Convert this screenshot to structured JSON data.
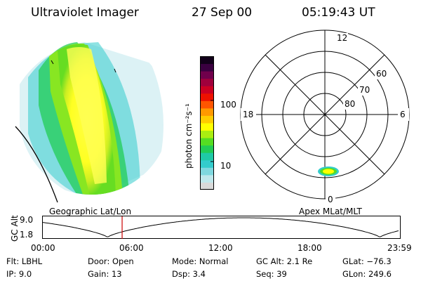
{
  "header": {
    "instrument": "Ultraviolet Imager",
    "date": "27 Sep 00",
    "time": "05:19:43 UT"
  },
  "colorbar": {
    "unit_label": "photon cm⁻²s⁻¹",
    "tick_100": "100",
    "tick_10": "10",
    "colors": [
      "#d9d9d9",
      "#bfe8ec",
      "#7fd8df",
      "#33cccc",
      "#1fc9a6",
      "#22cc55",
      "#55dd22",
      "#aaee11",
      "#ffff00",
      "#ffcc00",
      "#ff9900",
      "#ff5500",
      "#ee1100",
      "#cc0022",
      "#a0003c",
      "#70004c",
      "#3a0040",
      "#12001a"
    ]
  },
  "polar": {
    "mlt_12": "12",
    "mlt_18": "18",
    "mlt_6": "6",
    "mlt_0": "0",
    "lat_60": "60",
    "lat_70": "70",
    "lat_80": "80"
  },
  "left_label": "Geographic Lat/Lon",
  "right_label": "Apex MLat/MLT",
  "orbit": {
    "ylabel": "GC Alt",
    "ytick_top": "9.0",
    "ytick_bottom": "1.8",
    "xticks": [
      "00:00",
      "06:00",
      "12:00",
      "18:00",
      "23:59"
    ],
    "marker_time_hours": 5.33
  },
  "status": {
    "flt": "Flt: LBHL",
    "ip": "IP:  9.0",
    "door": "Door: Open",
    "gain": "Gain: 13",
    "mode": "Mode: Normal",
    "dsp": "Dsp:     3.4",
    "gcalt": "GC Alt: 2.1 Re",
    "seq": "Seq: 39",
    "glat": "GLat: −76.3",
    "glon": "GLon: 249.6"
  }
}
